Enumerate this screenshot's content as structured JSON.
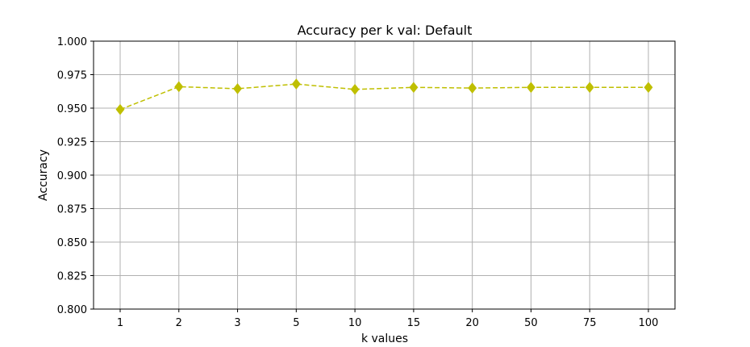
{
  "chart_data": {
    "type": "line",
    "title": "Accuracy per k val: Default",
    "xlabel": "k values",
    "ylabel": "Accuracy",
    "categories": [
      "1",
      "2",
      "3",
      "5",
      "10",
      "15",
      "20",
      "50",
      "75",
      "100"
    ],
    "series": [
      {
        "values": [
          0.949,
          0.966,
          0.9645,
          0.968,
          0.964,
          0.9655,
          0.965,
          0.9655,
          0.9655,
          0.9655
        ],
        "color": "#bfbf00",
        "line_style": "dashed",
        "marker": "diamond"
      }
    ],
    "ylim": [
      0.8,
      1.0
    ],
    "yticks": [
      "0.800",
      "0.825",
      "0.850",
      "0.875",
      "0.900",
      "0.925",
      "0.950",
      "0.975",
      "1.000"
    ],
    "grid": true,
    "grid_color": "#b0b0b0"
  }
}
